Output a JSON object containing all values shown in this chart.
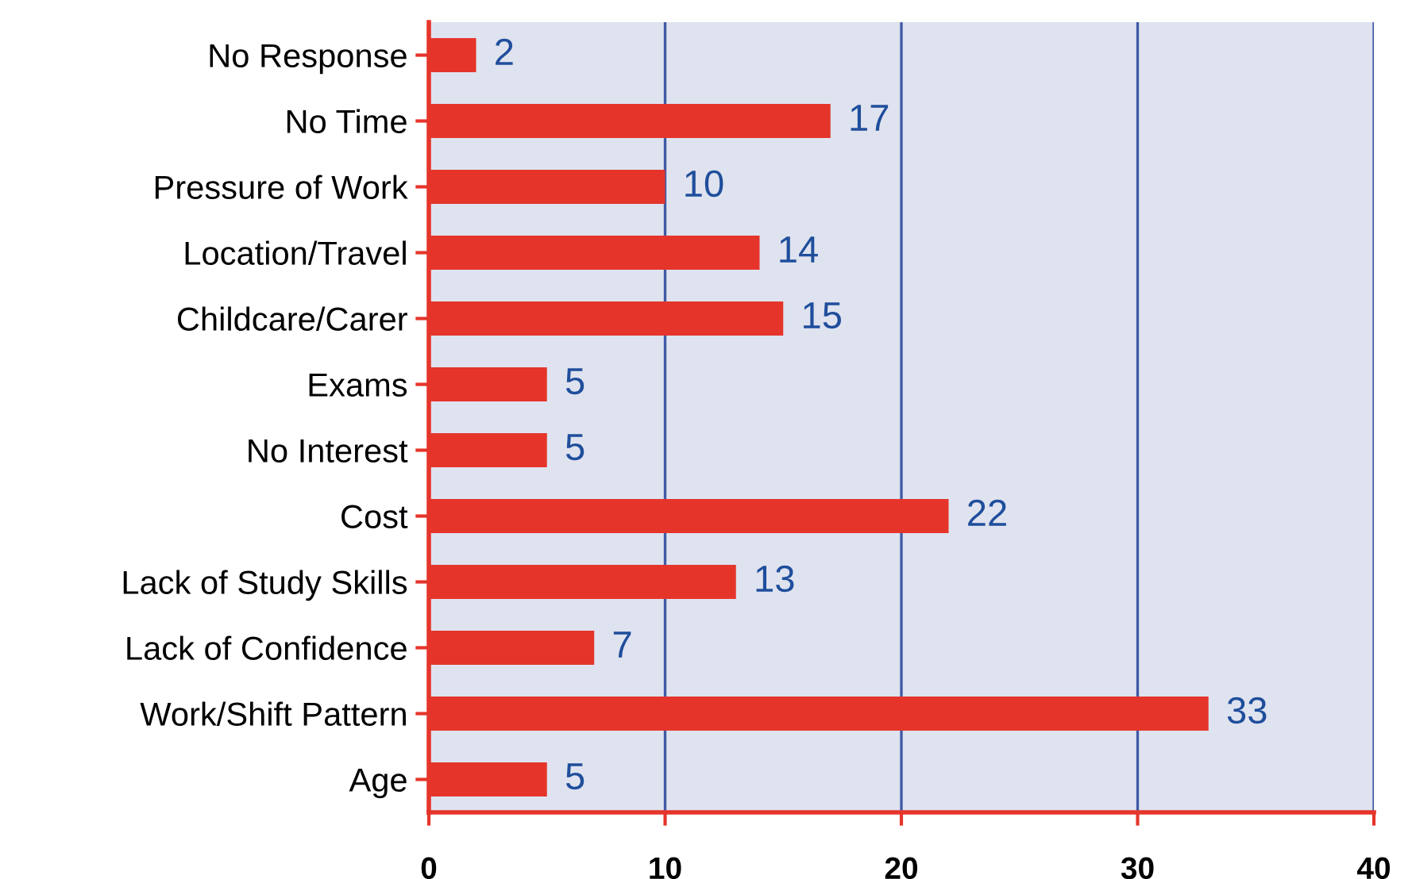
{
  "chart_data": {
    "type": "bar",
    "orientation": "horizontal",
    "categories": [
      "No Response",
      "No Time",
      "Pressure of Work",
      "Location/Travel",
      "Childcare/Carer",
      "Exams",
      "No Interest",
      "Cost",
      "Lack of Study Skills",
      "Lack of Confidence",
      "Work/Shift Pattern",
      "Age"
    ],
    "values": [
      2,
      17,
      10,
      14,
      15,
      5,
      5,
      22,
      13,
      7,
      33,
      5
    ],
    "color": "#e5352b",
    "data_labels": true,
    "xlim": [
      0,
      40
    ],
    "xticks": [
      0,
      10,
      20,
      30,
      40
    ],
    "grid": "x"
  }
}
